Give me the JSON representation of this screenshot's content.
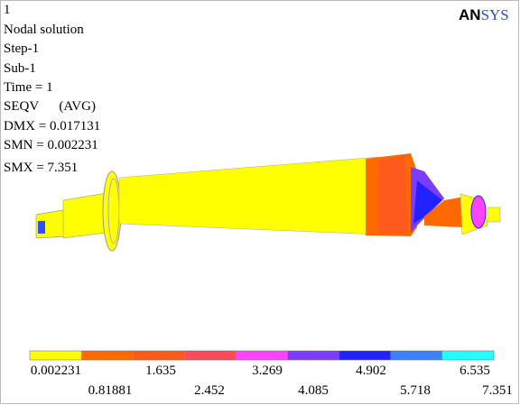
{
  "window_number": "1",
  "logo": {
    "part1": "AN",
    "part2": "SYS"
  },
  "info": [
    "Nodal solution",
    "Step-1",
    "Sub-1",
    "Time = 1",
    "SEQV      (AVG)",
    "DMX = 0.017131",
    "SMN = 0.002231",
    "SMX = 7.351"
  ],
  "legend": {
    "colors": [
      "#ffff00",
      "#ff6a00",
      "#ff5a1e",
      "#ff4a5a",
      "#ff44ff",
      "#7a3cff",
      "#2222ff",
      "#3c82ff",
      "#22ffff"
    ],
    "labels_top": [
      "0.002231",
      "1.635",
      "3.269",
      "4.902",
      "6.535"
    ],
    "labels_bottom": [
      "0.81881",
      "2.452",
      "4.085",
      "5.718",
      "7.351"
    ]
  }
}
